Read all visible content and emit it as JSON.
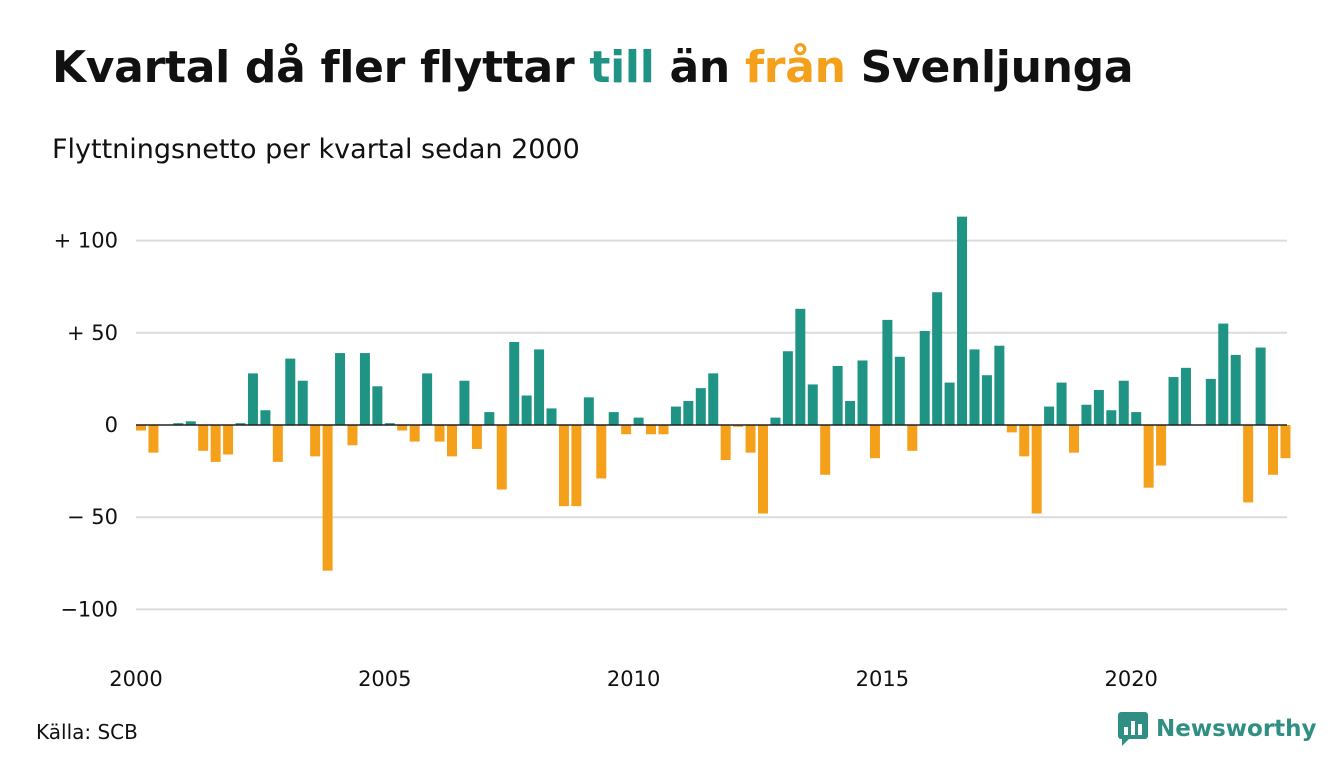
{
  "title": {
    "before": "Kvartal då fler flyttar",
    "pos": "till",
    "mid": "än",
    "neg": "från",
    "after": "Svenljunga"
  },
  "subtitle": "Flyttningsnetto per kvartal sedan 2000",
  "source": "Källa: SCB",
  "brand": "Newsworthy",
  "colors": {
    "positive": "#1f9485",
    "negative": "#f5a01a",
    "grid": "#dcdcdc"
  },
  "chart_data": {
    "type": "bar",
    "start_quarter": "2000 Q1",
    "values": [
      -3,
      -15,
      0,
      1,
      2,
      -14,
      -20,
      -16,
      1,
      28,
      8,
      -20,
      36,
      24,
      -17,
      -79,
      39,
      -11,
      39,
      21,
      1,
      -3,
      -9,
      28,
      -9,
      -17,
      24,
      -13,
      7,
      -35,
      45,
      16,
      41,
      9,
      -44,
      -44,
      15,
      -29,
      7,
      -5,
      4,
      -5,
      -5,
      10,
      13,
      20,
      28,
      -19,
      -1,
      -15,
      -48,
      4,
      40,
      63,
      22,
      -27,
      32,
      13,
      35,
      -18,
      57,
      37,
      -14,
      51,
      72,
      23,
      113,
      41,
      27,
      43,
      -4,
      -17,
      -48,
      10,
      23,
      -15,
      11,
      19,
      8,
      24,
      7,
      -34,
      -22,
      26,
      31,
      0,
      25,
      55,
      38,
      -42,
      42,
      -27,
      -18
    ],
    "y_ticks": [
      {
        "v": 100,
        "label": "+ 100"
      },
      {
        "v": 50,
        "label": "+  50"
      },
      {
        "v": 0,
        "label": "0"
      },
      {
        "v": -50,
        "label": "− 50"
      },
      {
        "v": -100,
        "label": "−100"
      }
    ],
    "x_ticks": [
      "2000",
      "2005",
      "2010",
      "2015",
      "2020"
    ],
    "ylim": [
      -100,
      120
    ],
    "grid": true
  }
}
